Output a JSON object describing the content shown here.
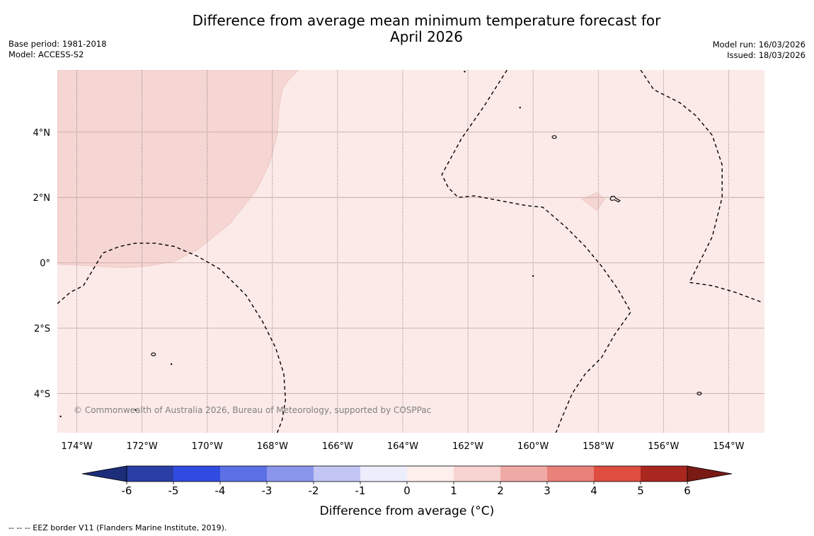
{
  "title_line1": "Difference from average mean minimum temperature forecast for",
  "title_line2": "April 2026",
  "base_period": "Base period: 1981-2018",
  "model": "Model: ACCESS-S2",
  "model_run": "Model run: 16/03/2026",
  "issued": "Issued: 18/03/2026",
  "copyright": "© Commonwealth of Australia 2026, Bureau of Meteorology, supported by COSPPac",
  "footer": "--  --  -- EEZ border V11 (Flanders Marine Institute, 2019).",
  "map": {
    "extent": {
      "lon_min": -174.6,
      "lon_max": -152.9,
      "lat_min": -5.2,
      "lat_max": 5.9
    },
    "lon_ticks": [
      -174,
      -172,
      -170,
      -168,
      -166,
      -164,
      -162,
      -160,
      -158,
      -156,
      -154
    ],
    "lon_labels": [
      "174°W",
      "172°W",
      "170°W",
      "168°W",
      "166°W",
      "164°W",
      "162°W",
      "160°W",
      "158°W",
      "156°W",
      "154°W"
    ],
    "lat_ticks": [
      4,
      2,
      0,
      -2,
      -4
    ],
    "lat_labels": [
      "4°N",
      "2°N",
      "0°",
      "2°S",
      "4°S"
    ],
    "background_category": "0 to 1",
    "regions": [
      {
        "name": "warm-anomaly-1-to-2",
        "color": "#f5d6d3",
        "polygon": [
          [
            -174.6,
            5.9
          ],
          [
            -167.2,
            5.9
          ],
          [
            -167.5,
            5.6
          ],
          [
            -167.7,
            5.3
          ],
          [
            -167.8,
            4.7
          ],
          [
            -167.85,
            3.9
          ],
          [
            -168.1,
            3.0
          ],
          [
            -168.5,
            2.2
          ],
          [
            -169.3,
            1.2
          ],
          [
            -170.3,
            0.4
          ],
          [
            -171.0,
            0.05
          ],
          [
            -171.8,
            -0.1
          ],
          [
            -172.6,
            -0.15
          ],
          [
            -173.4,
            -0.1
          ],
          [
            -174.6,
            -0.05
          ]
        ]
      },
      {
        "name": "warm-anomaly-patch-1-to-2",
        "color": "#f5d6d3",
        "polygon": [
          [
            -158.5,
            1.95
          ],
          [
            -158.05,
            2.15
          ],
          [
            -157.8,
            1.95
          ],
          [
            -158.05,
            1.6
          ]
        ]
      }
    ],
    "eez_borders": [
      [
        [
          -174.6,
          -1.25
        ],
        [
          -174.2,
          -0.9
        ],
        [
          -173.8,
          -0.7
        ],
        [
          -173.5,
          -0.2
        ],
        [
          -173.2,
          0.3
        ],
        [
          -172.7,
          0.5
        ],
        [
          -172.2,
          0.6
        ],
        [
          -171.6,
          0.6
        ],
        [
          -171.0,
          0.5
        ],
        [
          -170.3,
          0.2
        ],
        [
          -169.6,
          -0.2
        ],
        [
          -168.8,
          -1.0
        ],
        [
          -168.3,
          -1.8
        ],
        [
          -167.9,
          -2.6
        ],
        [
          -167.65,
          -3.4
        ],
        [
          -167.6,
          -4.2
        ],
        [
          -167.7,
          -4.8
        ],
        [
          -167.85,
          -5.2
        ]
      ],
      [
        [
          -160.8,
          5.9
        ],
        [
          -161.5,
          4.8
        ],
        [
          -162.2,
          3.8
        ],
        [
          -162.8,
          2.7
        ],
        [
          -162.6,
          2.3
        ],
        [
          -162.3,
          2.0
        ],
        [
          -161.8,
          2.05
        ],
        [
          -161.0,
          1.9
        ],
        [
          -160.2,
          1.75
        ],
        [
          -159.7,
          1.7
        ],
        [
          -159.0,
          1.1
        ],
        [
          -158.4,
          0.5
        ],
        [
          -157.9,
          -0.1
        ],
        [
          -157.4,
          -0.8
        ],
        [
          -157.0,
          -1.5
        ],
        [
          -157.5,
          -2.2
        ],
        [
          -157.9,
          -2.9
        ],
        [
          -158.4,
          -3.4
        ],
        [
          -158.8,
          -4.0
        ],
        [
          -159.1,
          -4.7
        ],
        [
          -159.3,
          -5.2
        ]
      ],
      [
        [
          -156.7,
          5.9
        ],
        [
          -156.3,
          5.3
        ],
        [
          -155.5,
          4.9
        ],
        [
          -155.0,
          4.5
        ],
        [
          -154.5,
          3.9
        ],
        [
          -154.2,
          3.0
        ],
        [
          -154.2,
          2.0
        ],
        [
          -154.5,
          0.8
        ],
        [
          -154.8,
          0.2
        ],
        [
          -155.2,
          -0.6
        ],
        [
          -154.5,
          -0.7
        ],
        [
          -153.8,
          -0.9
        ],
        [
          -153.0,
          -1.2
        ]
      ]
    ],
    "islands": [
      {
        "lon": -159.35,
        "lat": 3.85,
        "shape": "ring"
      },
      {
        "lon": -157.55,
        "lat": 1.95,
        "shape": "atoll"
      },
      {
        "lon": -171.65,
        "lat": -2.8,
        "shape": "ring"
      },
      {
        "lon": -171.1,
        "lat": -3.1,
        "shape": "dot"
      },
      {
        "lon": -172.2,
        "lat": -4.5,
        "shape": "dot"
      },
      {
        "lon": -174.5,
        "lat": -4.7,
        "shape": "dot"
      },
      {
        "lon": -162.1,
        "lat": 5.85,
        "shape": "dot"
      },
      {
        "lon": -160.4,
        "lat": 4.75,
        "shape": "dot"
      },
      {
        "lon": -160.0,
        "lat": -0.4,
        "shape": "dot"
      },
      {
        "lon": -154.9,
        "lat": -4.0,
        "shape": "ring"
      }
    ]
  },
  "colorbar": {
    "bounds": [
      -6,
      -5,
      -4,
      -3,
      -2,
      -1,
      0,
      1,
      2,
      3,
      4,
      5,
      6
    ],
    "labels": [
      "-6",
      "-5",
      "-4",
      "-3",
      "-2",
      "-1",
      "0",
      "1",
      "2",
      "3",
      "4",
      "5",
      "6"
    ],
    "colors": [
      "#2a3ea5",
      "#304ce0",
      "#5c70e6",
      "#8a96ec",
      "#c3c6f5",
      "#eceefc",
      "#fcefec",
      "#f7d4d1",
      "#f0aaa6",
      "#e8817a",
      "#df4c40",
      "#aa2720"
    ],
    "under_color": "#1c2d7a",
    "over_color": "#7a1a15",
    "title": "Difference from average (°C)"
  },
  "background_fill": "#fbeae8"
}
